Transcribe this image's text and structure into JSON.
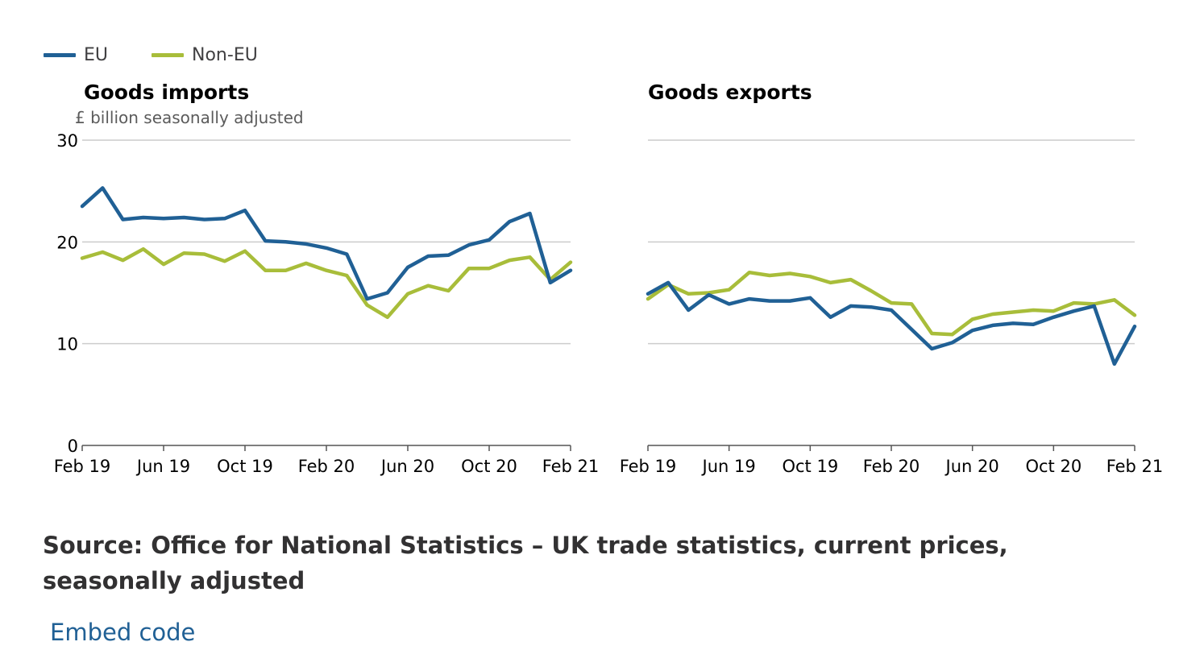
{
  "legend": {
    "items": [
      {
        "label": "EU",
        "color": "#206095"
      },
      {
        "label": "Non-EU",
        "color": "#a8bd3a"
      }
    ]
  },
  "chart_data": [
    {
      "type": "line",
      "title": "Goods imports",
      "subtitle": "£ billion seasonally adjusted",
      "x": [
        "Feb 19",
        "Mar 19",
        "Apr 19",
        "May 19",
        "Jun 19",
        "Jul 19",
        "Aug 19",
        "Sep 19",
        "Oct 19",
        "Nov 19",
        "Dec 19",
        "Jan 20",
        "Feb 20",
        "Mar 20",
        "Apr 20",
        "May 20",
        "Jun 20",
        "Jul 20",
        "Aug 20",
        "Sep 20",
        "Oct 20",
        "Nov 20",
        "Dec 20",
        "Jan 21",
        "Feb 21"
      ],
      "xticks": [
        "Feb 19",
        "Jun 19",
        "Oct 19",
        "Feb 20",
        "Jun 20",
        "Oct 20",
        "Feb 21"
      ],
      "yticks": [
        0,
        10,
        20,
        30
      ],
      "ylim": [
        0,
        30
      ],
      "grid": true,
      "series": [
        {
          "name": "EU",
          "color": "#206095",
          "values": [
            23.5,
            25.3,
            22.2,
            22.4,
            22.3,
            22.4,
            22.2,
            22.3,
            23.1,
            20.1,
            20.0,
            19.8,
            19.4,
            18.8,
            14.4,
            15.0,
            17.5,
            18.6,
            18.7,
            19.7,
            20.2,
            22.0,
            22.8,
            16.0,
            17.2
          ]
        },
        {
          "name": "Non-EU",
          "color": "#a8bd3a",
          "values": [
            18.4,
            19.0,
            18.2,
            19.3,
            17.8,
            18.9,
            18.8,
            18.1,
            19.1,
            17.2,
            17.2,
            17.9,
            17.2,
            16.7,
            13.8,
            12.6,
            14.9,
            15.7,
            15.2,
            17.4,
            17.4,
            18.2,
            18.5,
            16.3,
            18.0
          ]
        }
      ]
    },
    {
      "type": "line",
      "title": "Goods exports",
      "subtitle": "",
      "x": [
        "Feb 19",
        "Mar 19",
        "Apr 19",
        "May 19",
        "Jun 19",
        "Jul 19",
        "Aug 19",
        "Sep 19",
        "Oct 19",
        "Nov 19",
        "Dec 19",
        "Jan 20",
        "Feb 20",
        "Mar 20",
        "Apr 20",
        "May 20",
        "Jun 20",
        "Jul 20",
        "Aug 20",
        "Sep 20",
        "Oct 20",
        "Nov 20",
        "Dec 20",
        "Jan 21",
        "Feb 21"
      ],
      "xticks": [
        "Feb 19",
        "Jun 19",
        "Oct 19",
        "Feb 20",
        "Jun 20",
        "Oct 20",
        "Feb 21"
      ],
      "yticks": [
        0,
        10,
        20,
        30
      ],
      "ylim": [
        0,
        30
      ],
      "grid": true,
      "series": [
        {
          "name": "EU",
          "color": "#206095",
          "values": [
            14.9,
            16.0,
            13.3,
            14.8,
            13.9,
            14.4,
            14.2,
            14.2,
            14.5,
            12.6,
            13.7,
            13.6,
            13.3,
            11.4,
            9.5,
            10.1,
            11.3,
            11.8,
            12.0,
            11.9,
            12.6,
            13.2,
            13.7,
            8.0,
            11.7
          ]
        },
        {
          "name": "Non-EU",
          "color": "#a8bd3a",
          "values": [
            14.4,
            15.8,
            14.9,
            15.0,
            15.3,
            17.0,
            16.7,
            16.9,
            16.6,
            16.0,
            16.3,
            15.2,
            14.0,
            13.9,
            11.0,
            10.9,
            12.4,
            12.9,
            13.1,
            13.3,
            13.2,
            14.0,
            13.9,
            14.3,
            12.8
          ]
        }
      ]
    }
  ],
  "source": "Source: Office for National Statistics – UK trade statistics, current prices, seasonally adjusted",
  "embed_link": "Embed code"
}
